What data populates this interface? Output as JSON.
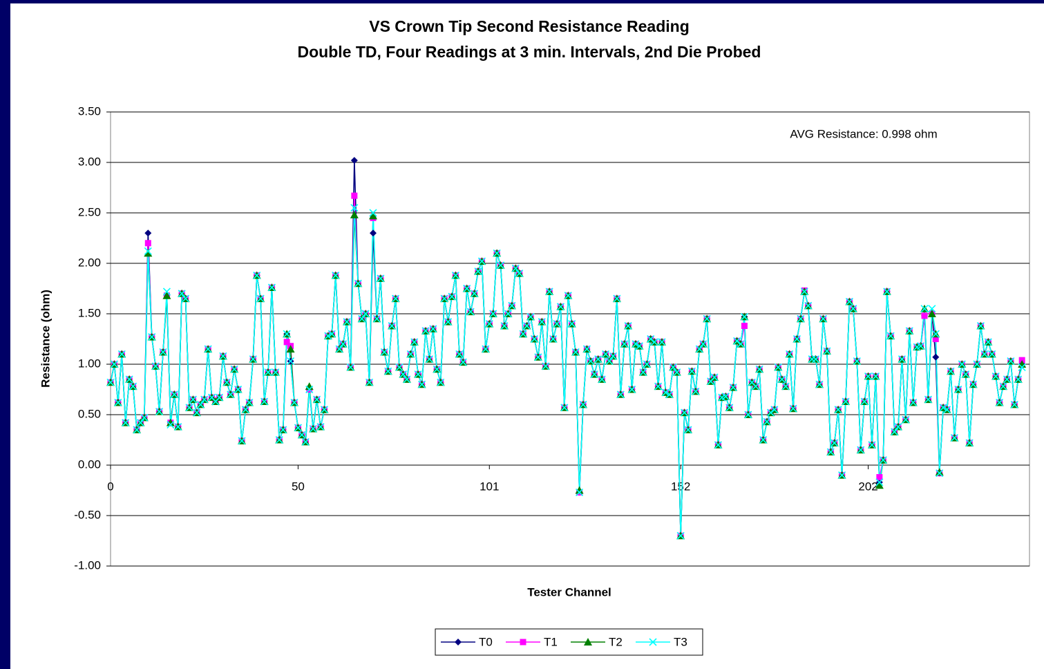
{
  "chart_data": {
    "type": "line",
    "title": "VS Crown Tip Second Resistance Reading",
    "subtitle": "Double TD, Four Readings at 3 min. Intervals, 2nd Die Probed",
    "x_label": "Tester Channel",
    "y_label": "Resistance (ohm)",
    "annotation": "AVG Resistance: 0.998 ohm",
    "x": [
      0,
      1,
      2,
      3,
      4,
      5,
      6,
      7,
      8,
      9,
      10,
      11,
      12,
      13,
      14,
      15,
      16,
      17,
      18,
      19,
      20,
      21,
      22,
      23,
      24,
      25,
      26,
      27,
      28,
      29,
      30,
      31,
      32,
      33,
      34,
      35,
      36,
      37,
      38,
      39,
      40,
      41,
      42,
      43,
      44,
      45,
      46,
      47,
      48,
      49,
      50,
      51,
      52,
      53,
      54,
      55,
      56,
      57,
      58,
      59,
      60,
      61,
      62,
      63,
      64,
      65,
      66,
      67,
      68,
      69,
      70,
      71,
      72,
      73,
      74,
      75,
      76,
      77,
      78,
      79,
      80,
      81,
      82,
      83,
      84,
      85,
      86,
      87,
      88,
      89,
      90,
      91,
      92,
      93,
      94,
      95,
      96,
      97,
      98,
      99,
      100,
      101,
      102,
      103,
      104,
      105,
      106,
      107,
      108,
      109,
      110,
      111,
      112,
      113,
      114,
      115,
      116,
      117,
      118,
      119,
      120,
      121,
      122,
      123,
      124,
      125,
      126,
      127,
      128,
      129,
      130,
      131,
      132,
      133,
      134,
      135,
      136,
      137,
      138,
      139,
      140,
      141,
      142,
      143,
      144,
      145,
      146,
      147,
      148,
      149,
      150,
      151,
      152,
      153,
      154,
      155,
      156,
      157,
      158,
      159,
      160,
      161,
      162,
      163,
      164,
      165,
      166,
      167,
      168,
      169,
      170,
      171,
      172,
      173,
      174,
      175,
      176,
      177,
      178,
      179,
      180,
      181,
      182,
      183,
      184,
      185,
      186,
      187,
      188,
      189,
      190,
      191,
      192,
      193,
      194,
      195,
      196,
      197,
      198,
      199,
      200,
      201,
      202,
      203,
      204,
      205,
      206,
      207,
      208,
      209,
      210,
      211,
      212,
      213,
      214,
      215,
      216,
      217,
      218,
      219,
      220,
      221,
      222,
      223,
      224,
      225,
      226,
      227,
      228,
      229,
      230,
      231,
      232,
      233,
      234,
      235,
      236,
      237,
      238,
      239,
      240,
      241,
      242,
      243
    ],
    "series": [
      {
        "name": "T0",
        "color": "#000080",
        "marker": "diamond",
        "values": [
          0.82,
          1.0,
          0.62,
          1.1,
          0.42,
          0.85,
          0.78,
          0.35,
          0.42,
          0.47,
          2.3,
          1.27,
          0.98,
          0.53,
          1.12,
          1.68,
          0.42,
          0.7,
          0.38,
          1.7,
          1.65,
          0.57,
          0.65,
          0.52,
          0.6,
          0.65,
          1.15,
          0.67,
          0.63,
          0.67,
          1.08,
          0.82,
          0.7,
          0.95,
          0.75,
          0.24,
          0.55,
          0.62,
          1.05,
          1.88,
          1.65,
          0.63,
          0.92,
          1.76,
          0.92,
          0.25,
          0.35,
          1.3,
          1.03,
          0.62,
          0.37,
          0.3,
          0.23,
          0.75,
          0.36,
          0.65,
          0.38,
          0.55,
          1.28,
          1.3,
          1.88,
          1.15,
          1.2,
          1.42,
          0.97,
          3.02,
          1.8,
          1.45,
          1.5,
          0.82,
          2.3,
          1.45,
          1.85,
          1.12,
          0.93,
          1.38,
          1.65,
          0.97,
          0.9,
          0.85,
          1.1,
          1.22,
          0.9,
          0.8,
          1.33,
          1.05,
          1.35,
          0.95,
          0.82,
          1.65,
          1.42,
          1.67,
          1.88,
          1.1,
          1.02,
          1.75,
          1.52,
          1.7,
          1.92,
          2.02,
          1.15,
          1.4,
          1.5,
          2.1,
          1.98,
          1.38,
          1.5,
          1.58,
          1.95,
          1.9,
          1.3,
          1.38,
          1.47,
          1.25,
          1.07,
          1.42,
          0.98,
          1.72,
          1.25,
          1.4,
          1.57,
          0.57,
          1.68,
          1.4,
          1.12,
          -0.27,
          0.6,
          1.15,
          1.03,
          0.9,
          1.05,
          0.85,
          1.1,
          1.03,
          1.08,
          1.65,
          0.7,
          1.2,
          1.38,
          0.75,
          1.2,
          1.18,
          0.92,
          1.0,
          1.25,
          1.22,
          0.78,
          1.22,
          0.72,
          0.7,
          0.97,
          0.92,
          -0.7,
          0.52,
          0.35,
          0.93,
          0.73,
          1.15,
          1.2,
          1.45,
          0.83,
          0.87,
          0.2,
          0.67,
          0.68,
          0.57,
          0.77,
          1.23,
          1.2,
          1.47,
          0.5,
          0.82,
          0.78,
          0.95,
          0.25,
          0.43,
          0.52,
          0.55,
          0.97,
          0.85,
          0.78,
          1.1,
          0.56,
          1.25,
          1.45,
          1.72,
          1.58,
          1.05,
          1.05,
          0.8,
          1.45,
          1.13,
          0.13,
          0.22,
          0.55,
          -0.1,
          0.63,
          1.62,
          1.55,
          1.03,
          0.15,
          0.63,
          0.88,
          0.2,
          0.88,
          -0.17,
          0.05,
          1.72,
          1.28,
          0.33,
          0.38,
          1.05,
          0.45,
          1.33,
          0.62,
          1.17,
          1.18,
          1.48,
          0.65,
          1.5,
          1.07,
          -0.08,
          0.57,
          0.55,
          0.93,
          0.27,
          0.75,
          1.0,
          0.9,
          0.22,
          0.8,
          1.0,
          1.38,
          1.1,
          1.22,
          1.1,
          0.88,
          0.62,
          0.78,
          0.85,
          1.03,
          0.6,
          0.85,
          1.0
        ]
      },
      {
        "name": "T1",
        "color": "#ff00ff",
        "marker": "square",
        "values": [
          0.82,
          1.0,
          0.62,
          1.1,
          0.42,
          0.85,
          0.78,
          0.35,
          0.42,
          0.47,
          2.2,
          1.27,
          0.98,
          0.53,
          1.12,
          1.68,
          0.42,
          0.7,
          0.38,
          1.7,
          1.65,
          0.57,
          0.65,
          0.52,
          0.6,
          0.65,
          1.15,
          0.67,
          0.63,
          0.67,
          1.08,
          0.82,
          0.7,
          0.95,
          0.75,
          0.24,
          0.55,
          0.62,
          1.05,
          1.88,
          1.65,
          0.63,
          0.92,
          1.76,
          0.92,
          0.25,
          0.35,
          1.22,
          1.18,
          0.62,
          0.37,
          0.3,
          0.23,
          0.75,
          0.36,
          0.65,
          0.38,
          0.55,
          1.28,
          1.3,
          1.88,
          1.15,
          1.2,
          1.42,
          0.97,
          2.67,
          1.8,
          1.45,
          1.5,
          0.82,
          2.45,
          1.45,
          1.85,
          1.12,
          0.93,
          1.38,
          1.65,
          0.97,
          0.9,
          0.85,
          1.1,
          1.22,
          0.9,
          0.8,
          1.33,
          1.05,
          1.35,
          0.95,
          0.82,
          1.65,
          1.42,
          1.67,
          1.88,
          1.1,
          1.02,
          1.75,
          1.52,
          1.7,
          1.92,
          2.02,
          1.15,
          1.4,
          1.5,
          2.1,
          1.98,
          1.38,
          1.5,
          1.58,
          1.95,
          1.9,
          1.3,
          1.38,
          1.47,
          1.25,
          1.07,
          1.42,
          0.98,
          1.72,
          1.25,
          1.4,
          1.57,
          0.57,
          1.68,
          1.4,
          1.12,
          -0.27,
          0.6,
          1.15,
          1.03,
          0.9,
          1.05,
          0.85,
          1.1,
          1.03,
          1.08,
          1.65,
          0.7,
          1.2,
          1.38,
          0.75,
          1.2,
          1.18,
          0.92,
          1.0,
          1.25,
          1.22,
          0.78,
          1.22,
          0.72,
          0.7,
          0.97,
          0.92,
          -0.7,
          0.52,
          0.35,
          0.93,
          0.73,
          1.15,
          1.2,
          1.45,
          0.83,
          0.87,
          0.2,
          0.67,
          0.68,
          0.57,
          0.77,
          1.23,
          1.2,
          1.38,
          0.5,
          0.82,
          0.78,
          0.95,
          0.25,
          0.43,
          0.52,
          0.55,
          0.97,
          0.85,
          0.78,
          1.1,
          0.56,
          1.25,
          1.45,
          1.73,
          1.58,
          1.05,
          1.05,
          0.8,
          1.45,
          1.13,
          0.13,
          0.22,
          0.55,
          -0.1,
          0.63,
          1.62,
          1.55,
          1.03,
          0.15,
          0.63,
          0.88,
          0.2,
          0.88,
          -0.12,
          0.05,
          1.72,
          1.28,
          0.33,
          0.38,
          1.05,
          0.45,
          1.33,
          0.62,
          1.17,
          1.18,
          1.48,
          0.65,
          1.5,
          1.25,
          -0.08,
          0.57,
          0.55,
          0.93,
          0.27,
          0.75,
          1.0,
          0.9,
          0.22,
          0.8,
          1.0,
          1.38,
          1.1,
          1.22,
          1.1,
          0.88,
          0.62,
          0.78,
          0.85,
          1.03,
          0.6,
          0.85,
          1.04
        ]
      },
      {
        "name": "T2",
        "color": "#008000",
        "marker": "triangle",
        "values": [
          0.82,
          1.0,
          0.62,
          1.1,
          0.42,
          0.85,
          0.78,
          0.35,
          0.42,
          0.47,
          2.1,
          1.27,
          0.98,
          0.53,
          1.12,
          1.68,
          0.42,
          0.7,
          0.38,
          1.7,
          1.65,
          0.57,
          0.65,
          0.52,
          0.6,
          0.65,
          1.15,
          0.67,
          0.63,
          0.67,
          1.08,
          0.82,
          0.7,
          0.95,
          0.75,
          0.24,
          0.55,
          0.62,
          1.05,
          1.88,
          1.65,
          0.63,
          0.92,
          1.76,
          0.92,
          0.25,
          0.35,
          1.3,
          1.15,
          0.62,
          0.37,
          0.3,
          0.23,
          0.78,
          0.36,
          0.65,
          0.38,
          0.55,
          1.28,
          1.3,
          1.88,
          1.15,
          1.2,
          1.42,
          0.97,
          2.48,
          1.8,
          1.45,
          1.5,
          0.82,
          2.47,
          1.45,
          1.85,
          1.12,
          0.93,
          1.38,
          1.65,
          0.97,
          0.9,
          0.85,
          1.1,
          1.22,
          0.9,
          0.8,
          1.33,
          1.05,
          1.35,
          0.95,
          0.82,
          1.65,
          1.42,
          1.67,
          1.88,
          1.1,
          1.02,
          1.75,
          1.52,
          1.7,
          1.92,
          2.02,
          1.15,
          1.4,
          1.5,
          2.1,
          1.98,
          1.38,
          1.5,
          1.58,
          1.95,
          1.9,
          1.3,
          1.38,
          1.47,
          1.25,
          1.07,
          1.42,
          0.98,
          1.72,
          1.25,
          1.4,
          1.57,
          0.57,
          1.68,
          1.4,
          1.12,
          -0.25,
          0.6,
          1.15,
          1.03,
          0.9,
          1.05,
          0.85,
          1.1,
          1.03,
          1.08,
          1.65,
          0.7,
          1.2,
          1.38,
          0.75,
          1.2,
          1.18,
          0.92,
          1.0,
          1.25,
          1.22,
          0.78,
          1.22,
          0.72,
          0.7,
          0.97,
          0.92,
          -0.7,
          0.52,
          0.35,
          0.93,
          0.73,
          1.15,
          1.2,
          1.45,
          0.83,
          0.87,
          0.2,
          0.67,
          0.68,
          0.57,
          0.77,
          1.23,
          1.2,
          1.47,
          0.5,
          0.82,
          0.78,
          0.95,
          0.25,
          0.43,
          0.52,
          0.55,
          0.97,
          0.85,
          0.78,
          1.1,
          0.56,
          1.25,
          1.45,
          1.72,
          1.58,
          1.05,
          1.05,
          0.8,
          1.45,
          1.13,
          0.13,
          0.22,
          0.55,
          -0.1,
          0.63,
          1.62,
          1.55,
          1.03,
          0.15,
          0.63,
          0.88,
          0.2,
          0.88,
          -0.2,
          0.05,
          1.72,
          1.28,
          0.33,
          0.38,
          1.05,
          0.45,
          1.33,
          0.62,
          1.17,
          1.18,
          1.55,
          0.65,
          1.5,
          1.3,
          -0.07,
          0.57,
          0.55,
          0.93,
          0.27,
          0.75,
          1.0,
          0.9,
          0.22,
          0.8,
          1.0,
          1.38,
          1.1,
          1.22,
          1.1,
          0.88,
          0.62,
          0.78,
          0.85,
          1.03,
          0.6,
          0.85,
          1.0
        ]
      },
      {
        "name": "T3",
        "color": "#00ffff",
        "marker": "x",
        "values": [
          0.82,
          1.0,
          0.62,
          1.1,
          0.42,
          0.85,
          0.78,
          0.35,
          0.42,
          0.47,
          2.12,
          1.27,
          0.98,
          0.53,
          1.12,
          1.72,
          0.4,
          0.7,
          0.38,
          1.7,
          1.65,
          0.57,
          0.65,
          0.52,
          0.6,
          0.65,
          1.15,
          0.67,
          0.63,
          0.67,
          1.08,
          0.82,
          0.7,
          0.95,
          0.75,
          0.24,
          0.55,
          0.62,
          1.05,
          1.88,
          1.65,
          0.63,
          0.92,
          1.76,
          0.92,
          0.25,
          0.35,
          1.3,
          1.03,
          0.62,
          0.37,
          0.3,
          0.23,
          0.75,
          0.36,
          0.65,
          0.38,
          0.55,
          1.28,
          1.3,
          1.88,
          1.15,
          1.2,
          1.42,
          0.97,
          2.55,
          1.8,
          1.45,
          1.5,
          0.82,
          2.5,
          1.45,
          1.85,
          1.12,
          0.93,
          1.38,
          1.65,
          0.97,
          0.9,
          0.85,
          1.1,
          1.22,
          0.9,
          0.8,
          1.33,
          1.05,
          1.35,
          0.95,
          0.82,
          1.65,
          1.42,
          1.67,
          1.88,
          1.1,
          1.02,
          1.75,
          1.52,
          1.7,
          1.92,
          2.02,
          1.15,
          1.4,
          1.5,
          2.1,
          1.98,
          1.38,
          1.5,
          1.58,
          1.95,
          1.9,
          1.3,
          1.38,
          1.47,
          1.25,
          1.07,
          1.42,
          0.98,
          1.72,
          1.25,
          1.4,
          1.57,
          0.57,
          1.68,
          1.4,
          1.12,
          -0.27,
          0.6,
          1.15,
          1.03,
          0.9,
          1.05,
          0.85,
          1.1,
          1.03,
          1.08,
          1.65,
          0.7,
          1.2,
          1.38,
          0.75,
          1.2,
          1.18,
          0.92,
          1.0,
          1.25,
          1.22,
          0.78,
          1.22,
          0.72,
          0.7,
          0.97,
          0.92,
          -0.7,
          0.52,
          0.35,
          0.93,
          0.73,
          1.15,
          1.2,
          1.45,
          0.83,
          0.87,
          0.2,
          0.67,
          0.68,
          0.57,
          0.77,
          1.23,
          1.2,
          1.47,
          0.5,
          0.82,
          0.78,
          0.95,
          0.25,
          0.43,
          0.52,
          0.55,
          0.97,
          0.85,
          0.78,
          1.1,
          0.56,
          1.25,
          1.45,
          1.72,
          1.58,
          1.05,
          1.05,
          0.8,
          1.45,
          1.13,
          0.13,
          0.22,
          0.55,
          -0.1,
          0.63,
          1.62,
          1.55,
          1.03,
          0.15,
          0.63,
          0.88,
          0.2,
          0.88,
          -0.17,
          0.05,
          1.72,
          1.28,
          0.33,
          0.38,
          1.05,
          0.45,
          1.33,
          0.62,
          1.17,
          1.18,
          1.55,
          0.65,
          1.55,
          1.3,
          -0.08,
          0.57,
          0.55,
          0.93,
          0.27,
          0.75,
          1.0,
          0.9,
          0.22,
          0.8,
          1.0,
          1.38,
          1.1,
          1.22,
          1.1,
          0.88,
          0.62,
          0.78,
          0.85,
          1.03,
          0.6,
          0.85,
          0.97
        ]
      }
    ],
    "xlim": [
      0,
      245
    ],
    "xticks": [
      0,
      50,
      101,
      152,
      202
    ],
    "ylim": [
      -1,
      3.5
    ],
    "yticks": [
      {
        "value": -1,
        "label": "-1.00"
      },
      {
        "value": -0.5,
        "label": "-0.50"
      },
      {
        "value": 0,
        "label": "0.00"
      },
      {
        "value": 0.5,
        "label": "0.50"
      },
      {
        "value": 1,
        "label": "1.00"
      },
      {
        "value": 1.5,
        "label": "1.50"
      },
      {
        "value": 2,
        "label": "2.00"
      },
      {
        "value": 2.5,
        "label": "2.50"
      },
      {
        "value": 3,
        "label": "3.00"
      },
      {
        "value": 3.5,
        "label": "3.50"
      }
    ],
    "grid": true,
    "legend": "bottom"
  }
}
